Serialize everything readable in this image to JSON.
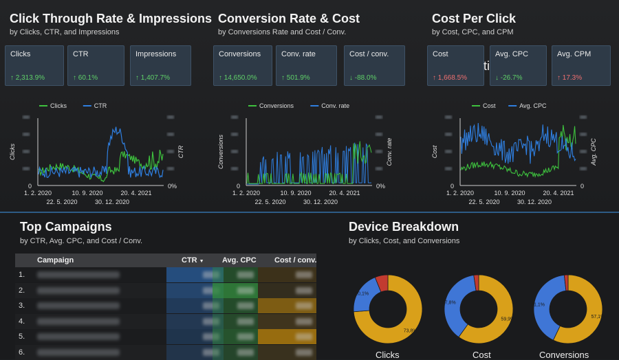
{
  "sections": {
    "ctr": {
      "title": "Click Through Rate & Impressions",
      "subtitle": "by Clicks, CTR, and Impressions",
      "kpis": [
        {
          "label": "Clicks",
          "delta": "↑ 2,313.9%",
          "trend": "up-good"
        },
        {
          "label": "CTR",
          "delta": "↑ 60.1%",
          "trend": "up-good"
        },
        {
          "label": "Impressions",
          "delta": "↑ 1,407.7%",
          "trend": "up-good"
        }
      ]
    },
    "conv": {
      "title": "Conversion Rate & Cost",
      "subtitle": "by Conversions Rate and Cost / Conv.",
      "kpis": [
        {
          "label": "Conversions",
          "delta": "↑ 14,650.0%",
          "trend": "up-good"
        },
        {
          "label": "Conv. rate",
          "delta": "↑ 501.9%",
          "trend": "up-good"
        },
        {
          "label": "Cost / conv.",
          "delta": "↓ -88.0%",
          "trend": "down-good"
        }
      ]
    },
    "cpc": {
      "title": "Cost Per Click",
      "subtitle": "by Cost, CPC, and CPM",
      "overlay_text": "ti",
      "kpis": [
        {
          "label": "Cost",
          "delta": "↑ 1,668.5%",
          "trend": "up-bad"
        },
        {
          "label": "Avg. CPC",
          "delta": "↓ -26.7%",
          "trend": "down-good"
        },
        {
          "label": "Avg. CPM",
          "delta": "↑ 17.3%",
          "trend": "up-bad"
        }
      ]
    }
  },
  "colors": {
    "green": "#3ec23e",
    "blue": "#2f7fe0",
    "donut_blue": "#3f76d6",
    "donut_gold": "#d9a01a",
    "donut_red": "#c23b30"
  },
  "chart_data": [
    {
      "type": "line",
      "series": [
        {
          "name": "Clicks"
        },
        {
          "name": "CTR"
        }
      ],
      "ylabel": "Clicks",
      "y2label": "CTR",
      "y_bottom_left": "0",
      "y_bottom_right": "0%",
      "x_ticks_row1": [
        "1. 2. 2020",
        "10. 9. 2020",
        "20. 4. 2021"
      ],
      "x_ticks_row2": [
        "22. 5. 2020",
        "30. 12. 2020"
      ]
    },
    {
      "type": "line",
      "series": [
        {
          "name": "Conversions"
        },
        {
          "name": "Conv. rate"
        }
      ],
      "ylabel": "Conversions",
      "y2label": "Conv. rate",
      "y_bottom_left": "0",
      "y_bottom_right": "0%",
      "x_ticks_row1": [
        "1. 2. 2020",
        "10. 9. 2020",
        "20. 4. 2021"
      ],
      "x_ticks_row2": [
        "22. 5. 2020",
        "30. 12. 2020"
      ]
    },
    {
      "type": "line",
      "series": [
        {
          "name": "Cost"
        },
        {
          "name": "Avg. CPC"
        }
      ],
      "ylabel": "Cost",
      "y2label": "Avg. CPC",
      "y_bottom_left": "0",
      "y_bottom_right": "0",
      "x_ticks_row1": [
        "1. 2. 2020",
        "10. 9. 2020",
        "20. 4. 2021"
      ],
      "x_ticks_row2": [
        "22. 5. 2020",
        "30. 12. 2020"
      ]
    },
    {
      "type": "pie",
      "title": "Clicks",
      "slices": [
        {
          "value": 73.8,
          "label": "73,8%",
          "color": "#d9a01a"
        },
        {
          "value": 20.1,
          "label": "20,1%",
          "color": "#3f76d6"
        },
        {
          "value": 6.1,
          "label": "",
          "color": "#c23b30"
        }
      ]
    },
    {
      "type": "pie",
      "title": "Cost",
      "slices": [
        {
          "value": 59.9,
          "label": "59,9%",
          "color": "#d9a01a"
        },
        {
          "value": 37.8,
          "label": "37,8%",
          "color": "#3f76d6"
        },
        {
          "value": 2.3,
          "label": "",
          "color": "#c23b30"
        }
      ]
    },
    {
      "type": "pie",
      "title": "Conversions",
      "slices": [
        {
          "value": 57.1,
          "label": "57,1%",
          "color": "#d9a01a"
        },
        {
          "value": 41.1,
          "label": "41,1%",
          "color": "#3f76d6"
        },
        {
          "value": 1.8,
          "label": "",
          "color": "#c23b30"
        }
      ]
    }
  ],
  "campaigns": {
    "title": "Top Campaigns",
    "subtitle": "by CTR, Avg. CPC, and Cost / Conv.",
    "headers": {
      "campaign": "Campaign",
      "ctr": "CTR",
      "sort_icon": "▼",
      "cpc": "Avg. CPC",
      "cost_conv": "Cost / conv."
    },
    "rows": [
      {
        "num": "1.",
        "ctr_heat": 0.9,
        "cpc_heat": 0.4,
        "cc_heat": 0.1
      },
      {
        "num": "2.",
        "ctr_heat": 0.7,
        "cpc_heat": 0.9,
        "cc_heat": 0.0
      },
      {
        "num": "3.",
        "ctr_heat": 0.5,
        "cpc_heat": 0.4,
        "cc_heat": 0.6
      },
      {
        "num": "4.",
        "ctr_heat": 0.4,
        "cpc_heat": 0.35,
        "cc_heat": 0.1
      },
      {
        "num": "5.",
        "ctr_heat": 0.35,
        "cpc_heat": 0.5,
        "cc_heat": 0.8
      },
      {
        "num": "6.",
        "ctr_heat": 0.3,
        "cpc_heat": 0.3,
        "cc_heat": 0.05
      }
    ]
  },
  "devices": {
    "title": "Device Breakdown",
    "subtitle": "by Clicks, Cost, and Conversions"
  }
}
